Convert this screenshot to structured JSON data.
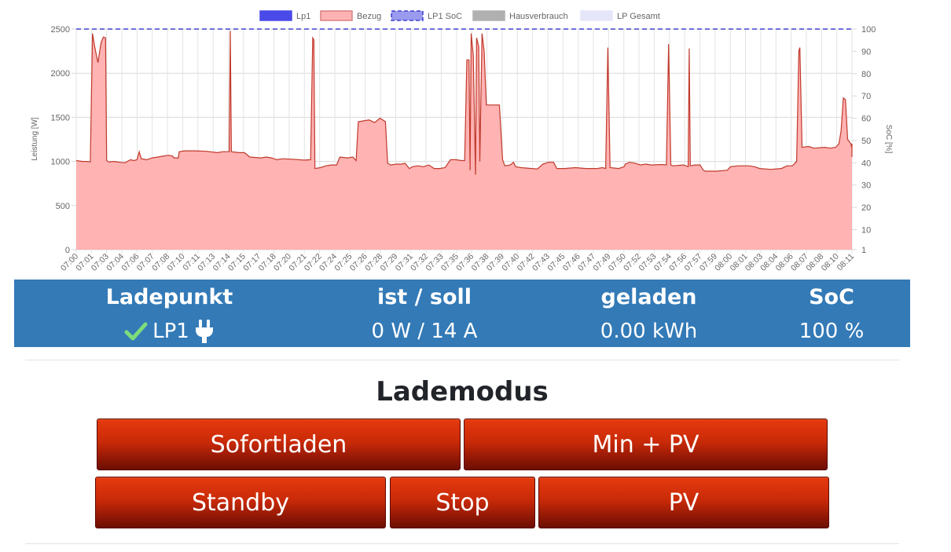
{
  "chart_data": {
    "type": "area",
    "legend": [
      {
        "label": "Lp1",
        "color": "#4a4ae8",
        "style": "solid"
      },
      {
        "label": "Bezug",
        "color": "#ffb3b3",
        "border": "#d98080",
        "style": "solid"
      },
      {
        "label": "LP1 SoC",
        "color": "#9a9aef",
        "border": "#4040d0",
        "style": "dashed"
      },
      {
        "label": "Hausverbrauch",
        "color": "#b0b0b0",
        "style": "solid"
      },
      {
        "label": "LP Gesamt",
        "color": "#e6e6fa",
        "style": "solid"
      }
    ],
    "legend_position": "top",
    "ylabel": "Leistung [W]",
    "y2label": "SoC [%]",
    "ylim": [
      0,
      2500
    ],
    "y_ticks": [
      0,
      500,
      1000,
      1500,
      2000,
      2500
    ],
    "y2lim": [
      1,
      100
    ],
    "y2_ticks": [
      1,
      10,
      20,
      30,
      40,
      50,
      60,
      70,
      80,
      90,
      100
    ],
    "x_ticks": [
      "07:00",
      "07:01",
      "07:03",
      "07:04",
      "07:06",
      "07:07",
      "07:08",
      "07:10",
      "07:11",
      "07:13",
      "07:14",
      "07:15",
      "07:17",
      "07:18",
      "07:20",
      "07:21",
      "07:22",
      "07:24",
      "07:25",
      "07:26",
      "07:28",
      "07:29",
      "07:31",
      "07:32",
      "07:33",
      "07:35",
      "07:36",
      "07:38",
      "07:39",
      "07:40",
      "07:42",
      "07:43",
      "07:45",
      "07:46",
      "07:47",
      "07:49",
      "07:50",
      "07:52",
      "07:53",
      "07:54",
      "07:56",
      "07:57",
      "07:59",
      "08:00",
      "08:01",
      "08:03",
      "08:04",
      "08:06",
      "08:07",
      "08:08",
      "08:10",
      "08:11"
    ],
    "x_range_minutes": [
      0,
      71.5
    ],
    "grid": true,
    "series": [
      {
        "name": "Bezug",
        "color": "#ffb3b3",
        "line": "#c0392b",
        "points": [
          [
            0,
            1010
          ],
          [
            0.6,
            1000
          ],
          [
            1,
            1000
          ],
          [
            1.3,
            995
          ],
          [
            1.5,
            2450
          ],
          [
            1.7,
            2300
          ],
          [
            2,
            2120
          ],
          [
            2.3,
            2350
          ],
          [
            2.5,
            2410
          ],
          [
            2.7,
            2400
          ],
          [
            2.8,
            1010
          ],
          [
            3,
            995
          ],
          [
            3.5,
            1000
          ],
          [
            4,
            990
          ],
          [
            4.5,
            985
          ],
          [
            5,
            1020
          ],
          [
            5.3,
            1010
          ],
          [
            5.6,
            1020
          ],
          [
            5.8,
            1110
          ],
          [
            6,
            1030
          ],
          [
            6.5,
            1020
          ],
          [
            7,
            1040
          ],
          [
            7.5,
            1050
          ],
          [
            8,
            1060
          ],
          [
            8.5,
            1070
          ],
          [
            8.9,
            1060
          ],
          [
            9,
            1040
          ],
          [
            9.4,
            1040
          ],
          [
            9.5,
            1110
          ],
          [
            10,
            1120
          ],
          [
            11,
            1120
          ],
          [
            12,
            1115
          ],
          [
            13,
            1100
          ],
          [
            13.5,
            1110
          ],
          [
            14.1,
            1110
          ],
          [
            14.2,
            2480
          ],
          [
            14.3,
            1110
          ],
          [
            15,
            1100
          ],
          [
            15.5,
            1100
          ],
          [
            16,
            1050
          ],
          [
            17,
            1040
          ],
          [
            17.5,
            1050
          ],
          [
            18,
            1040
          ],
          [
            18.5,
            1020
          ],
          [
            19,
            1030
          ],
          [
            20,
            1025
          ],
          [
            21,
            1015
          ],
          [
            21.6,
            1020
          ],
          [
            21.8,
            2400
          ],
          [
            21.9,
            2380
          ],
          [
            22,
            920
          ],
          [
            22.5,
            930
          ],
          [
            23,
            950
          ],
          [
            23.5,
            960
          ],
          [
            24,
            960
          ],
          [
            24.3,
            1050
          ],
          [
            25,
            1040
          ],
          [
            25.5,
            1050
          ],
          [
            25.8,
            1010
          ],
          [
            26,
            1450
          ],
          [
            26.5,
            1460
          ],
          [
            27,
            1470
          ],
          [
            27.5,
            1440
          ],
          [
            28,
            1490
          ],
          [
            28.5,
            1450
          ],
          [
            28.7,
            980
          ],
          [
            29,
            960
          ],
          [
            29.5,
            970
          ],
          [
            30,
            970
          ],
          [
            30.3,
            980
          ],
          [
            30.7,
            920
          ],
          [
            31,
            940
          ],
          [
            31.5,
            950
          ],
          [
            32,
            940
          ],
          [
            32.5,
            960
          ],
          [
            33,
            920
          ],
          [
            33.5,
            920
          ],
          [
            34,
            930
          ],
          [
            34.5,
            1020
          ],
          [
            35,
            1020
          ],
          [
            35.5,
            1010
          ],
          [
            35.8,
            1010
          ],
          [
            36,
            2150
          ],
          [
            36.2,
            2150
          ],
          [
            36.3,
            900
          ],
          [
            36.4,
            2450
          ],
          [
            36.6,
            2200
          ],
          [
            36.8,
            850
          ],
          [
            36.9,
            2400
          ],
          [
            37.1,
            2300
          ],
          [
            37.2,
            1000
          ],
          [
            37.4,
            2450
          ],
          [
            37.6,
            2250
          ],
          [
            37.8,
            1640
          ],
          [
            38,
            1640
          ],
          [
            39,
            1640
          ],
          [
            39.3,
            1020
          ],
          [
            39.5,
            950
          ],
          [
            40,
            960
          ],
          [
            40.3,
            990
          ],
          [
            40.5,
            940
          ],
          [
            41,
            930
          ],
          [
            42,
            920
          ],
          [
            42.5,
            915
          ],
          [
            43,
            970
          ],
          [
            43.5,
            990
          ],
          [
            44,
            990
          ],
          [
            44.3,
            920
          ],
          [
            45,
            920
          ],
          [
            46,
            930
          ],
          [
            47,
            920
          ],
          [
            48,
            920
          ],
          [
            48.5,
            930
          ],
          [
            48.8,
            920
          ],
          [
            49,
            2290
          ],
          [
            49.2,
            930
          ],
          [
            50,
            920
          ],
          [
            50.5,
            940
          ],
          [
            50.6,
            970
          ],
          [
            51,
            990
          ],
          [
            51.5,
            980
          ],
          [
            52,
            960
          ],
          [
            52.5,
            970
          ],
          [
            53,
            960
          ],
          [
            54,
            965
          ],
          [
            54.4,
            960
          ],
          [
            54.6,
            2330
          ],
          [
            54.8,
            960
          ],
          [
            55,
            950
          ],
          [
            56,
            960
          ],
          [
            56.4,
            940
          ],
          [
            56.5,
            2280
          ],
          [
            56.6,
            950
          ],
          [
            57,
            960
          ],
          [
            57.5,
            960
          ],
          [
            57.8,
            900
          ],
          [
            58,
            890
          ],
          [
            59,
            890
          ],
          [
            60,
            900
          ],
          [
            60.3,
            940
          ],
          [
            61,
            950
          ],
          [
            62,
            950
          ],
          [
            62.5,
            940
          ],
          [
            63,
            920
          ],
          [
            64,
            910
          ],
          [
            65,
            920
          ],
          [
            65.5,
            950
          ],
          [
            66,
            950
          ],
          [
            66.4,
            1000
          ],
          [
            66.6,
            2250
          ],
          [
            66.7,
            2290
          ],
          [
            66.9,
            1160
          ],
          [
            67.5,
            1170
          ],
          [
            68,
            1150
          ],
          [
            69,
            1160
          ],
          [
            69.5,
            1150
          ],
          [
            70,
            1160
          ],
          [
            70.3,
            1200
          ],
          [
            70.5,
            1350
          ],
          [
            70.7,
            1720
          ],
          [
            70.9,
            1700
          ],
          [
            71.1,
            1250
          ],
          [
            71.4,
            1200
          ],
          [
            71.6,
            1150
          ],
          [
            71.8,
            1140
          ],
          [
            72,
            1050
          ],
          [
            72.2,
            1120
          ],
          [
            72.5,
            1200
          ],
          [
            72.8,
            1130
          ],
          [
            73.2,
            1120
          ],
          [
            73.5,
            1120
          ]
        ]
      },
      {
        "name": "LP1 SoC",
        "axis": "y2",
        "values": [
          100
        ]
      }
    ]
  },
  "status": {
    "headers": [
      "Ladepunkt",
      "ist / soll",
      "geladen",
      "SoC"
    ],
    "lp_name": "LP1",
    "ist_soll": "0 W / 14 A",
    "geladen": "0.00 kWh",
    "soc": "100 %"
  },
  "lademodus": {
    "title": "Lademodus",
    "buttons": {
      "sofortladen": "Sofortladen",
      "min_pv": "Min + PV",
      "standby": "Standby",
      "stop": "Stop",
      "pv": "PV"
    }
  },
  "colors": {
    "status_bg": "#337ab7",
    "button_red": "#c92a08",
    "check_green": "#7ddc7a"
  }
}
